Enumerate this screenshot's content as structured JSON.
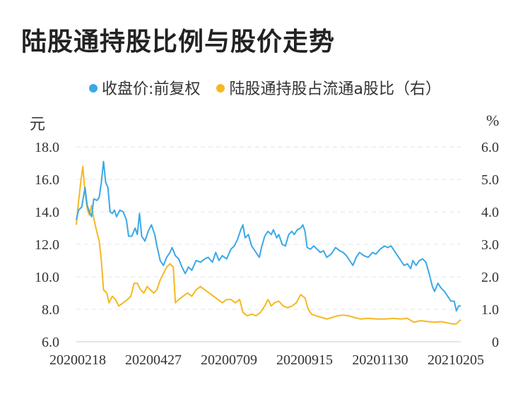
{
  "title": "陆股通持股比例与股价走势",
  "colors": {
    "price": "#3aa8e8",
    "ratio": "#f5b820",
    "grid": "#e3e3e3",
    "axis": "#cccccc"
  },
  "chart_data": {
    "type": "line",
    "title": "陆股通持股比例与股价走势",
    "y_left_unit": "元",
    "y_right_unit": "%",
    "y_left_range": [
      6.0,
      18.0
    ],
    "y_right_range": [
      0,
      6.0
    ],
    "y_left_ticks": [
      "6.0",
      "8.0",
      "10.0",
      "12.0",
      "14.0",
      "16.0",
      "18.0"
    ],
    "y_right_ticks": [
      "0",
      "1.0",
      "2.0",
      "3.0",
      "4.0",
      "5.0",
      "6.0"
    ],
    "x_ticks": [
      "20200218",
      "20200427",
      "20200709",
      "20200915",
      "20201130",
      "20210205"
    ],
    "x_range": [
      "2020-02-18",
      "2021-02-05"
    ],
    "grid": "horizontal-dashed",
    "legend_position": "top-center",
    "series": [
      {
        "name": "收盘价:前复权",
        "axis": "left",
        "points": [
          [
            "2020-02-18",
            13.5
          ],
          [
            "2020-02-20",
            14.1
          ],
          [
            "2020-02-23",
            14.3
          ],
          [
            "2020-02-26",
            15.5
          ],
          [
            "2020-02-28",
            14.4
          ],
          [
            "2020-03-01",
            14.0
          ],
          [
            "2020-03-03",
            13.7
          ],
          [
            "2020-03-05",
            14.8
          ],
          [
            "2020-03-08",
            14.7
          ],
          [
            "2020-03-10",
            14.9
          ],
          [
            "2020-03-12",
            15.8
          ],
          [
            "2020-03-14",
            17.1
          ],
          [
            "2020-03-16",
            15.8
          ],
          [
            "2020-03-18",
            15.5
          ],
          [
            "2020-03-20",
            14.0
          ],
          [
            "2020-03-22",
            13.9
          ],
          [
            "2020-03-24",
            14.1
          ],
          [
            "2020-03-26",
            13.7
          ],
          [
            "2020-03-29",
            14.1
          ],
          [
            "2020-04-01",
            14.0
          ],
          [
            "2020-04-04",
            13.5
          ],
          [
            "2020-04-06",
            12.5
          ],
          [
            "2020-04-09",
            12.5
          ],
          [
            "2020-04-12",
            13.0
          ],
          [
            "2020-04-14",
            12.6
          ],
          [
            "2020-04-16",
            13.9
          ],
          [
            "2020-04-18",
            12.5
          ],
          [
            "2020-04-21",
            12.2
          ],
          [
            "2020-04-24",
            12.8
          ],
          [
            "2020-04-27",
            13.2
          ],
          [
            "2020-04-30",
            12.6
          ],
          [
            "2020-05-02",
            11.9
          ],
          [
            "2020-05-05",
            11.0
          ],
          [
            "2020-05-08",
            10.7
          ],
          [
            "2020-05-11",
            11.2
          ],
          [
            "2020-05-14",
            11.5
          ],
          [
            "2020-05-16",
            11.8
          ],
          [
            "2020-05-19",
            11.3
          ],
          [
            "2020-05-22",
            11.1
          ],
          [
            "2020-05-25",
            10.6
          ],
          [
            "2020-05-28",
            10.2
          ],
          [
            "2020-05-31",
            10.6
          ],
          [
            "2020-06-03",
            10.4
          ],
          [
            "2020-06-07",
            11.0
          ],
          [
            "2020-06-11",
            10.9
          ],
          [
            "2020-06-15",
            11.1
          ],
          [
            "2020-06-18",
            11.2
          ],
          [
            "2020-06-22",
            10.9
          ],
          [
            "2020-06-25",
            11.5
          ],
          [
            "2020-06-28",
            11.0
          ],
          [
            "2020-07-01",
            11.3
          ],
          [
            "2020-07-05",
            11.1
          ],
          [
            "2020-07-09",
            11.7
          ],
          [
            "2020-07-12",
            11.9
          ],
          [
            "2020-07-15",
            12.3
          ],
          [
            "2020-07-18",
            12.9
          ],
          [
            "2020-07-20",
            13.2
          ],
          [
            "2020-07-22",
            12.4
          ],
          [
            "2020-07-25",
            12.6
          ],
          [
            "2020-07-28",
            11.9
          ],
          [
            "2020-08-01",
            11.5
          ],
          [
            "2020-08-04",
            11.2
          ],
          [
            "2020-08-06",
            11.8
          ],
          [
            "2020-08-09",
            12.5
          ],
          [
            "2020-08-12",
            12.8
          ],
          [
            "2020-08-15",
            12.6
          ],
          [
            "2020-08-17",
            12.9
          ],
          [
            "2020-08-20",
            12.4
          ],
          [
            "2020-08-22",
            12.6
          ],
          [
            "2020-08-25",
            12.0
          ],
          [
            "2020-08-28",
            11.9
          ],
          [
            "2020-08-31",
            12.6
          ],
          [
            "2020-09-03",
            12.8
          ],
          [
            "2020-09-05",
            12.6
          ],
          [
            "2020-09-08",
            12.9
          ],
          [
            "2020-09-11",
            13.0
          ],
          [
            "2020-09-13",
            13.2
          ],
          [
            "2020-09-15",
            12.8
          ],
          [
            "2020-09-17",
            11.8
          ],
          [
            "2020-09-20",
            11.7
          ],
          [
            "2020-09-23",
            11.9
          ],
          [
            "2020-09-26",
            11.7
          ],
          [
            "2020-09-29",
            11.5
          ],
          [
            "2020-10-02",
            11.6
          ],
          [
            "2020-10-05",
            11.2
          ],
          [
            "2020-10-09",
            11.4
          ],
          [
            "2020-10-13",
            11.8
          ],
          [
            "2020-10-17",
            11.6
          ],
          [
            "2020-10-20",
            11.5
          ],
          [
            "2020-10-23",
            11.3
          ],
          [
            "2020-10-26",
            11.0
          ],
          [
            "2020-10-29",
            10.7
          ],
          [
            "2020-11-01",
            11.2
          ],
          [
            "2020-11-04",
            11.5
          ],
          [
            "2020-11-08",
            11.3
          ],
          [
            "2020-11-12",
            11.2
          ],
          [
            "2020-11-16",
            11.5
          ],
          [
            "2020-11-19",
            11.4
          ],
          [
            "2020-11-23",
            11.7
          ],
          [
            "2020-11-27",
            11.9
          ],
          [
            "2020-11-30",
            11.8
          ],
          [
            "2020-12-03",
            11.9
          ],
          [
            "2020-12-06",
            11.6
          ],
          [
            "2020-12-09",
            11.3
          ],
          [
            "2020-12-12",
            11.0
          ],
          [
            "2020-12-15",
            10.7
          ],
          [
            "2020-12-18",
            10.8
          ],
          [
            "2020-12-21",
            10.5
          ],
          [
            "2020-12-23",
            11.0
          ],
          [
            "2020-12-26",
            10.7
          ],
          [
            "2020-12-29",
            11.0
          ],
          [
            "2021-01-01",
            11.1
          ],
          [
            "2021-01-04",
            10.9
          ],
          [
            "2021-01-07",
            10.2
          ],
          [
            "2021-01-10",
            9.4
          ],
          [
            "2021-01-12",
            9.1
          ],
          [
            "2021-01-15",
            9.6
          ],
          [
            "2021-01-18",
            9.3
          ],
          [
            "2021-01-21",
            9.1
          ],
          [
            "2021-01-24",
            8.8
          ],
          [
            "2021-01-27",
            8.5
          ],
          [
            "2021-01-30",
            8.5
          ],
          [
            "2021-02-01",
            7.9
          ],
          [
            "2021-02-03",
            8.2
          ],
          [
            "2021-02-05",
            8.2
          ]
        ]
      },
      {
        "name": "陆股通持股占流通a股比（右）",
        "axis": "right",
        "points": [
          [
            "2020-02-18",
            3.6
          ],
          [
            "2020-02-20",
            4.3
          ],
          [
            "2020-02-22",
            4.9
          ],
          [
            "2020-02-24",
            5.4
          ],
          [
            "2020-02-26",
            4.6
          ],
          [
            "2020-02-28",
            4.1
          ],
          [
            "2020-03-01",
            3.9
          ],
          [
            "2020-03-03",
            4.2
          ],
          [
            "2020-03-05",
            3.8
          ],
          [
            "2020-03-07",
            3.5
          ],
          [
            "2020-03-10",
            3.1
          ],
          [
            "2020-03-12",
            2.5
          ],
          [
            "2020-03-14",
            1.6
          ],
          [
            "2020-03-17",
            1.5
          ],
          [
            "2020-03-19",
            1.2
          ],
          [
            "2020-03-22",
            1.4
          ],
          [
            "2020-03-25",
            1.3
          ],
          [
            "2020-03-28",
            1.1
          ],
          [
            "2020-04-01",
            1.2
          ],
          [
            "2020-04-05",
            1.3
          ],
          [
            "2020-04-08",
            1.4
          ],
          [
            "2020-04-11",
            1.8
          ],
          [
            "2020-04-14",
            1.8
          ],
          [
            "2020-04-17",
            1.6
          ],
          [
            "2020-04-20",
            1.5
          ],
          [
            "2020-04-23",
            1.7
          ],
          [
            "2020-04-26",
            1.6
          ],
          [
            "2020-04-29",
            1.5
          ],
          [
            "2020-05-02",
            1.6
          ],
          [
            "2020-05-05",
            1.9
          ],
          [
            "2020-05-08",
            2.1
          ],
          [
            "2020-05-11",
            2.3
          ],
          [
            "2020-05-14",
            2.4
          ],
          [
            "2020-05-17",
            2.3
          ],
          [
            "2020-05-19",
            1.2
          ],
          [
            "2020-05-22",
            1.3
          ],
          [
            "2020-05-26",
            1.4
          ],
          [
            "2020-05-30",
            1.5
          ],
          [
            "2020-06-03",
            1.4
          ],
          [
            "2020-06-07",
            1.6
          ],
          [
            "2020-06-11",
            1.7
          ],
          [
            "2020-06-15",
            1.6
          ],
          [
            "2020-06-19",
            1.5
          ],
          [
            "2020-06-23",
            1.4
          ],
          [
            "2020-06-27",
            1.3
          ],
          [
            "2020-07-01",
            1.2
          ],
          [
            "2020-07-05",
            1.3
          ],
          [
            "2020-07-09",
            1.3
          ],
          [
            "2020-07-13",
            1.2
          ],
          [
            "2020-07-17",
            1.3
          ],
          [
            "2020-07-20",
            0.9
          ],
          [
            "2020-07-24",
            0.8
          ],
          [
            "2020-07-28",
            0.85
          ],
          [
            "2020-08-01",
            0.8
          ],
          [
            "2020-08-05",
            0.9
          ],
          [
            "2020-08-09",
            1.1
          ],
          [
            "2020-08-12",
            1.3
          ],
          [
            "2020-08-15",
            1.1
          ],
          [
            "2020-08-18",
            1.2
          ],
          [
            "2020-08-22",
            1.25
          ],
          [
            "2020-08-26",
            1.1
          ],
          [
            "2020-08-30",
            1.05
          ],
          [
            "2020-09-03",
            1.1
          ],
          [
            "2020-09-07",
            1.2
          ],
          [
            "2020-09-11",
            1.45
          ],
          [
            "2020-09-15",
            1.35
          ],
          [
            "2020-09-18",
            1.0
          ],
          [
            "2020-09-21",
            0.85
          ],
          [
            "2020-09-25",
            0.8
          ],
          [
            "2020-09-30",
            0.75
          ],
          [
            "2020-10-05",
            0.7
          ],
          [
            "2020-10-10",
            0.75
          ],
          [
            "2020-10-15",
            0.8
          ],
          [
            "2020-10-20",
            0.82
          ],
          [
            "2020-10-25",
            0.8
          ],
          [
            "2020-10-30",
            0.75
          ],
          [
            "2020-11-05",
            0.7
          ],
          [
            "2020-11-12",
            0.72
          ],
          [
            "2020-11-20",
            0.7
          ],
          [
            "2020-11-28",
            0.7
          ],
          [
            "2020-12-05",
            0.72
          ],
          [
            "2020-12-12",
            0.7
          ],
          [
            "2020-12-18",
            0.72
          ],
          [
            "2020-12-24",
            0.6
          ],
          [
            "2020-12-30",
            0.65
          ],
          [
            "2021-01-06",
            0.62
          ],
          [
            "2021-01-12",
            0.6
          ],
          [
            "2021-01-18",
            0.62
          ],
          [
            "2021-01-24",
            0.58
          ],
          [
            "2021-01-28",
            0.55
          ],
          [
            "2021-02-01",
            0.55
          ],
          [
            "2021-02-05",
            0.68
          ]
        ]
      }
    ]
  }
}
